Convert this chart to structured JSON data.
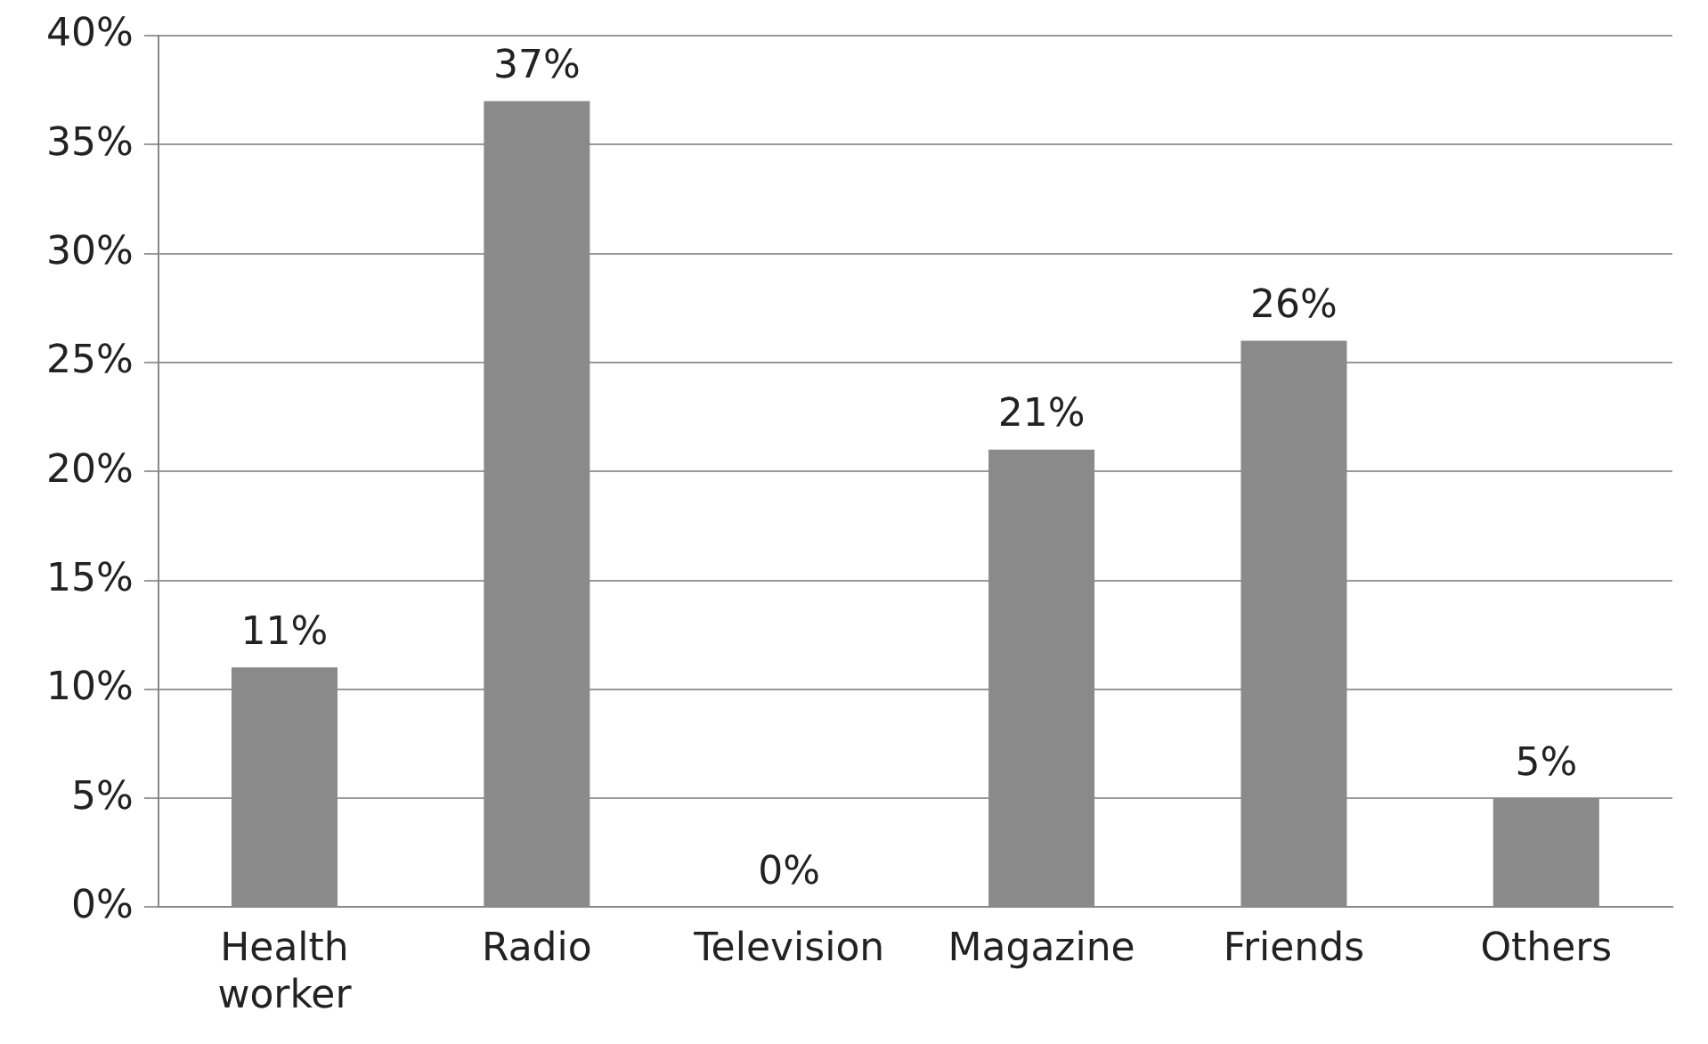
{
  "chart_data": {
    "type": "bar",
    "categories": [
      "Health worker",
      "Radio",
      "Television",
      "Magazine",
      "Friends",
      "Others"
    ],
    "values": [
      11,
      37,
      0,
      21,
      26,
      5
    ],
    "value_labels": [
      "11%",
      "37%",
      "0%",
      "21%",
      "26%",
      "5%"
    ],
    "color": "#8a8a8a",
    "ylim": [
      0,
      40
    ],
    "yticks": [
      {
        "value": 0,
        "label": "0%"
      },
      {
        "value": 5,
        "label": "5%"
      },
      {
        "value": 10,
        "label": "10%"
      },
      {
        "value": 15,
        "label": "15%"
      },
      {
        "value": 20,
        "label": "20%"
      },
      {
        "value": 25,
        "label": "25%"
      },
      {
        "value": 30,
        "label": "30%"
      },
      {
        "value": 35,
        "label": "35%"
      },
      {
        "value": 40,
        "label": "40%"
      }
    ],
    "grid": "y"
  }
}
